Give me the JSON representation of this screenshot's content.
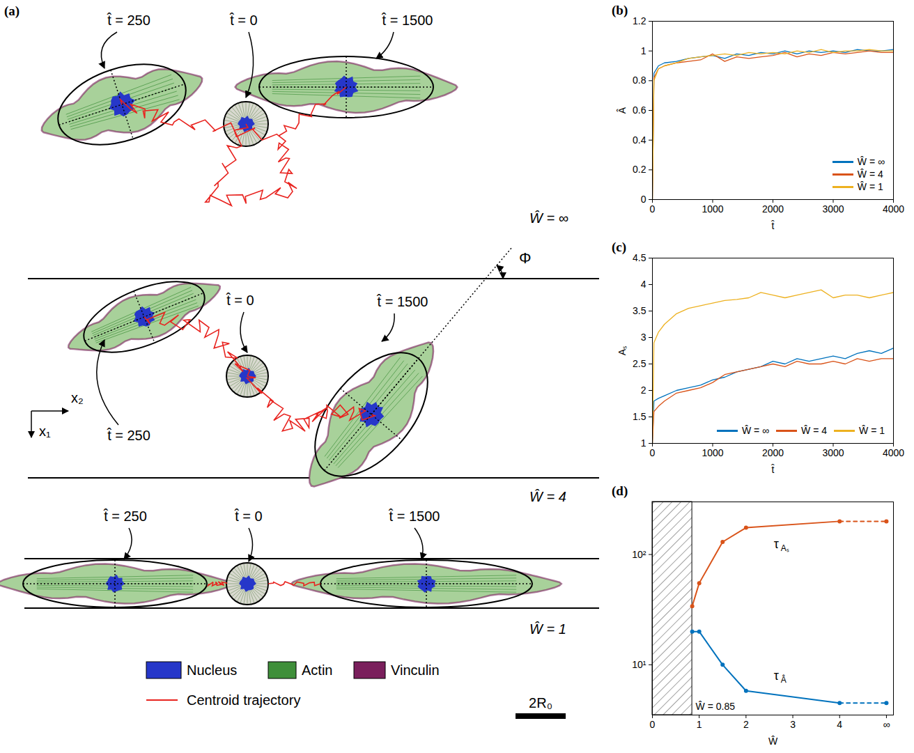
{
  "diagram": {
    "panel_label": "(a)",
    "panels": [
      {
        "width_label": "Ŵ = ∞",
        "time_labels": [
          "t̂ = 250",
          "t̂ = 0",
          "t̂ = 1500"
        ]
      },
      {
        "width_label": "Ŵ = 4",
        "time_labels": [
          "t̂ = 250",
          "t̂ = 0",
          "t̂ = 1500"
        ],
        "angle_label": "Φ",
        "axis_labels": [
          "x₁",
          "x₂"
        ]
      },
      {
        "width_label": "Ŵ = 1",
        "time_labels": [
          "t̂ = 250",
          "t̂ = 0",
          "t̂ = 1500"
        ]
      }
    ],
    "legend": [
      {
        "label": "Nucleus",
        "color": "#2637c9"
      },
      {
        "label": "Actin",
        "color": "#3f8f3a"
      },
      {
        "label": "Vinculin",
        "color": "#7a1f5c"
      }
    ],
    "trajectory": {
      "label": "Centroid trajectory",
      "color": "#e8231f"
    },
    "scale_bar": "2R₀"
  },
  "chart_data": [
    {
      "panel": "(b)",
      "type": "line",
      "x_label": "t̂",
      "y_label": "Â",
      "x": [
        0,
        25,
        100,
        200,
        400,
        600,
        800,
        1000,
        1200,
        1400,
        1600,
        1800,
        2000,
        2200,
        2400,
        2600,
        2800,
        3000,
        3200,
        3400,
        3600,
        3800,
        4000
      ],
      "xlim": [
        0,
        4000
      ],
      "xticks": [
        0,
        1000,
        2000,
        3000,
        4000
      ],
      "ylim": [
        0,
        1.2
      ],
      "yticks": [
        0,
        0.2,
        0.4,
        0.6,
        0.8,
        1,
        1.2
      ],
      "legend": "lower right",
      "series": [
        {
          "name": "Ŵ = ∞",
          "color": "#0072BD",
          "values": [
            0,
            0.85,
            0.9,
            0.92,
            0.93,
            0.95,
            0.96,
            0.97,
            0.95,
            0.98,
            0.97,
            0.99,
            0.98,
            1.0,
            0.98,
            1.0,
            0.99,
            1.0,
            0.99,
            1.01,
            1.0,
            1.0,
            1.01
          ]
        },
        {
          "name": "Ŵ = 4",
          "color": "#D95319",
          "values": [
            0,
            0.82,
            0.88,
            0.9,
            0.92,
            0.93,
            0.94,
            0.98,
            0.93,
            0.96,
            0.95,
            0.96,
            0.97,
            0.99,
            0.96,
            0.98,
            0.97,
            0.99,
            0.98,
            0.99,
            1.0,
            0.99,
            0.99
          ]
        },
        {
          "name": "Ŵ = 1",
          "color": "#EDB120",
          "values": [
            0,
            0.8,
            0.88,
            0.9,
            0.92,
            0.95,
            0.96,
            0.97,
            0.98,
            0.97,
            0.99,
            0.98,
            0.99,
            0.98,
            1.0,
            0.99,
            1.01,
            0.99,
            1.0,
            1.0,
            1.01,
            1.0,
            1.0
          ]
        }
      ]
    },
    {
      "panel": "(c)",
      "type": "line",
      "x_label": "t̂",
      "y_label": "Aₛ",
      "x": [
        0,
        25,
        100,
        200,
        400,
        600,
        800,
        1000,
        1200,
        1400,
        1600,
        1800,
        2000,
        2200,
        2400,
        2600,
        2800,
        3000,
        3200,
        3400,
        3600,
        3800,
        4000
      ],
      "xlim": [
        0,
        4000
      ],
      "xticks": [
        0,
        1000,
        2000,
        3000,
        4000
      ],
      "ylim": [
        1,
        4.5
      ],
      "yticks": [
        1,
        1.5,
        2,
        2.5,
        3,
        3.5,
        4,
        4.5
      ],
      "legend": "lower right",
      "series": [
        {
          "name": "Ŵ = ∞",
          "color": "#0072BD",
          "values": [
            1,
            1.8,
            1.85,
            1.9,
            2.0,
            2.05,
            2.1,
            2.2,
            2.25,
            2.35,
            2.4,
            2.45,
            2.55,
            2.5,
            2.6,
            2.55,
            2.6,
            2.65,
            2.6,
            2.7,
            2.75,
            2.7,
            2.8
          ]
        },
        {
          "name": "Ŵ = 4",
          "color": "#D95319",
          "values": [
            1,
            1.6,
            1.7,
            1.8,
            1.95,
            2.0,
            2.05,
            2.15,
            2.3,
            2.35,
            2.4,
            2.45,
            2.5,
            2.45,
            2.55,
            2.5,
            2.5,
            2.55,
            2.5,
            2.6,
            2.55,
            2.6,
            2.6
          ]
        },
        {
          "name": "Ŵ = 1",
          "color": "#EDB120",
          "values": [
            1,
            2.9,
            3.1,
            3.25,
            3.45,
            3.55,
            3.6,
            3.65,
            3.7,
            3.72,
            3.75,
            3.85,
            3.8,
            3.75,
            3.8,
            3.85,
            3.9,
            3.75,
            3.8,
            3.8,
            3.75,
            3.8,
            3.85
          ]
        }
      ]
    },
    {
      "panel": "(d)",
      "type": "line",
      "x_label": "Ŵ",
      "log": "y",
      "marker": "circle",
      "x": [
        0.85,
        1,
        1.5,
        2,
        4,
        5
      ],
      "xlim": [
        0,
        5.15
      ],
      "xticks": [
        0,
        1,
        2,
        3,
        4,
        {
          "value": 5,
          "label": "∞"
        }
      ],
      "ylim": [
        3.5,
        300
      ],
      "yticks": [
        {
          "value": 10,
          "label": "10¹"
        },
        {
          "value": 100,
          "label": "10²"
        }
      ],
      "hatched_region": {
        "xlim": [
          0,
          0.85
        ],
        "label": "Ŵ = 0.85"
      },
      "series": [
        {
          "name": "τ",
          "subscript": "Aₛ",
          "color": "#D95319",
          "values": [
            34,
            55,
            130,
            175,
            200,
            200
          ]
        },
        {
          "name": "τ",
          "subscript": "Â",
          "color": "#0072BD",
          "values": [
            20,
            20,
            10,
            5.8,
            4.5,
            4.5
          ]
        }
      ]
    }
  ]
}
